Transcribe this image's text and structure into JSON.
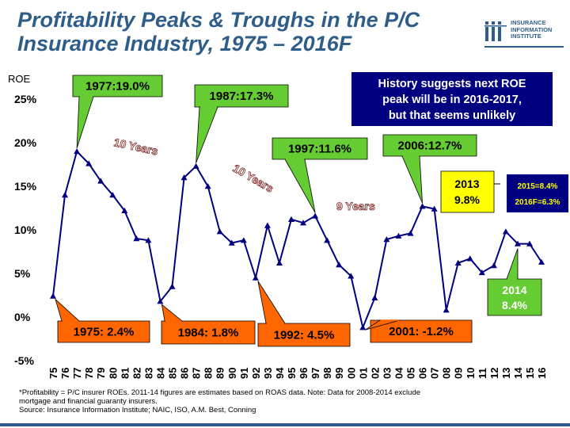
{
  "title": {
    "line1": "Profitability Peaks & Troughs in the P/C",
    "line2": "Insurance Industry, 1975 – 2016F"
  },
  "logo": {
    "icon": "iii-logo-icon",
    "line1": "INSURANCE",
    "line2": "INFORMATION",
    "line3": "INSTITUTE"
  },
  "colors": {
    "title": "#2f5d8a",
    "line": "#000080",
    "marker": "#000080",
    "callout_green": "#66cc33",
    "callout_orange": "#ff6600",
    "callout_yellow": "#ffff00",
    "navy_box": "#000080"
  },
  "chart_data": {
    "type": "line",
    "ylabel": "ROE",
    "ylim": [
      -5,
      25
    ],
    "yticks": [
      "25%",
      "20%",
      "15%",
      "10%",
      "5%",
      "0%",
      "-5%"
    ],
    "grid": false,
    "categories": [
      "75",
      "76",
      "77",
      "78",
      "79",
      "80",
      "81",
      "82",
      "83",
      "84",
      "85",
      "86",
      "87",
      "88",
      "89",
      "90",
      "91",
      "92",
      "93",
      "94",
      "95",
      "96",
      "97",
      "98",
      "99",
      "00",
      "01",
      "02",
      "03",
      "04",
      "05",
      "06",
      "07",
      "08",
      "09",
      "10",
      "11",
      "12",
      "13",
      "14",
      "15",
      "16"
    ],
    "series": [
      {
        "values": [
          2.4,
          14.0,
          19.0,
          17.6,
          15.6,
          14.0,
          12.2,
          9.0,
          8.8,
          1.8,
          3.5,
          16.0,
          17.3,
          15.0,
          9.8,
          8.5,
          8.8,
          4.5,
          10.5,
          6.2,
          11.2,
          10.8,
          11.6,
          8.8,
          6.0,
          4.7,
          -1.2,
          2.2,
          8.9,
          9.3,
          9.6,
          12.7,
          12.4,
          0.8,
          6.2,
          6.7,
          5.1,
          5.9,
          9.8,
          8.4,
          8.4,
          6.3
        ]
      }
    ],
    "annotations": {
      "peaks": [
        {
          "label": "1977:19.0%"
        },
        {
          "label": "1987:17.3%"
        },
        {
          "label": "1997:11.6%"
        },
        {
          "label": "2006:12.7%"
        }
      ],
      "troughs": [
        {
          "label": "1975: 2.4%"
        },
        {
          "label": "1984: 1.8%"
        },
        {
          "label": "1992: 4.5%"
        },
        {
          "label": "2001: -1.2%"
        }
      ],
      "cycles": [
        "10 Years",
        "10 Years",
        "9 Years"
      ],
      "headline": {
        "line1": "History suggests next ROE",
        "line2": "peak will be in 2016-2017,",
        "line3": "but that seems unlikely"
      },
      "box_2013": {
        "line1": "2013",
        "line2": "9.8%"
      },
      "box_2014": {
        "line1": "2014",
        "line2": "8.4%"
      },
      "box_2015": {
        "line1": "2015=8.4%",
        "line2": "2016F=6.3%"
      }
    }
  },
  "footnote": {
    "line1": "*Profitability = P/C insurer ROEs. 2011-14 figures are estimates based on ROAS data. Note: Data for 2008-2014 exclude",
    "line2": "mortgage and financial guaranty insurers.",
    "line3": "Source: Insurance Information Institute; NAIC, ISO, A.M. Best, Conning"
  }
}
